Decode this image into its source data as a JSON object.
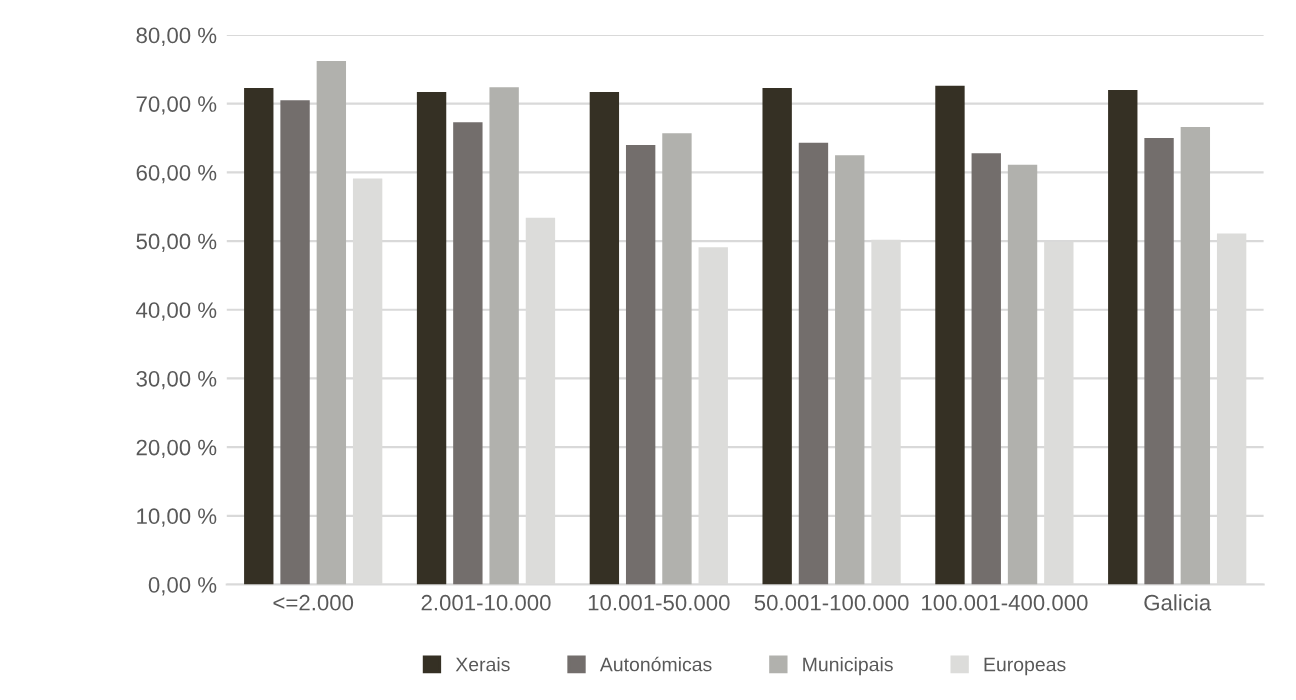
{
  "chart_data": {
    "type": "bar",
    "categories": [
      "<=2.000",
      "2.001-10.000",
      "10.001-50.000",
      "50.001-100.000",
      "100.001-400.000",
      "Galicia"
    ],
    "series": [
      {
        "name": "Xerais",
        "color": "#353024",
        "values": [
          72.3,
          71.7,
          71.7,
          72.3,
          72.6,
          72.0
        ]
      },
      {
        "name": "Autonómicas",
        "color": "#736e6c",
        "values": [
          70.5,
          67.3,
          64.0,
          64.3,
          62.8,
          65.0
        ]
      },
      {
        "name": "Municipais",
        "color": "#b1b1ad",
        "values": [
          76.2,
          72.4,
          65.7,
          62.5,
          61.1,
          66.6
        ]
      },
      {
        "name": "Europeas",
        "color": "#dcdcda",
        "values": [
          59.1,
          53.4,
          49.1,
          50.2,
          49.9,
          51.1
        ]
      }
    ],
    "ylim": [
      0,
      80
    ],
    "yticks": [
      {
        "value": 0,
        "label": "0,00 %"
      },
      {
        "value": 10,
        "label": "10,00 %"
      },
      {
        "value": 20,
        "label": "20,00 %"
      },
      {
        "value": 30,
        "label": "30,00 %"
      },
      {
        "value": 40,
        "label": "40,00 %"
      },
      {
        "value": 50,
        "label": "50,00 %"
      },
      {
        "value": 60,
        "label": "60,00 %"
      },
      {
        "value": 70,
        "label": "70,00 %"
      },
      {
        "value": 80,
        "label": "80,00 %"
      }
    ],
    "grid": "y",
    "legend": "bottom"
  }
}
